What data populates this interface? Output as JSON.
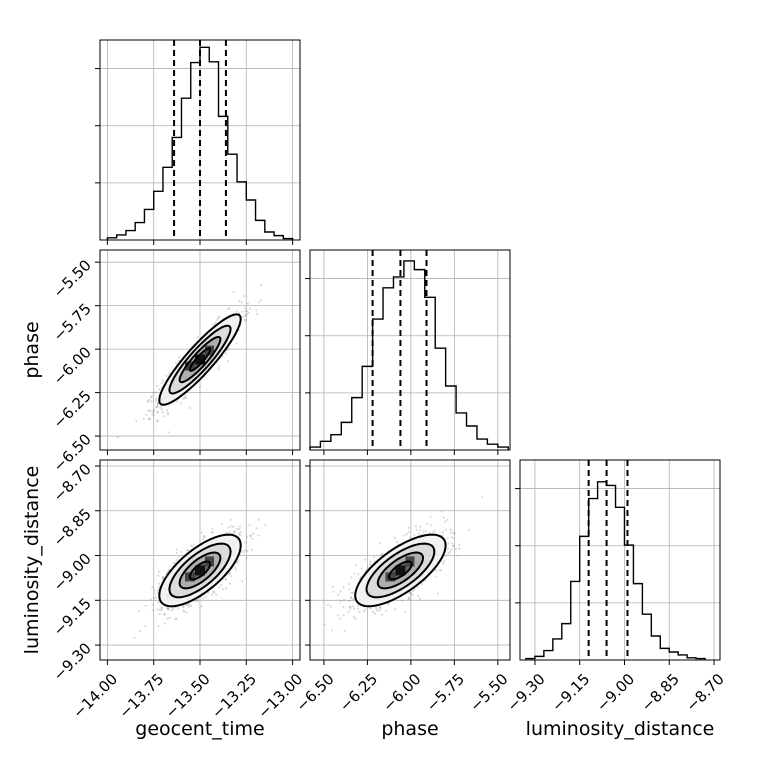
{
  "chart_data": {
    "type": "corner",
    "parameters": [
      "geocent_time",
      "phase",
      "luminosity_distance"
    ],
    "ticks": {
      "geocent_time": {
        "values": [
          -14.0,
          -13.75,
          -13.5,
          -13.25,
          -13.0
        ],
        "labels": [
          "−14.00",
          "−13.75",
          "−13.50",
          "−13.25",
          "−13.00"
        ]
      },
      "phase": {
        "values": [
          -6.5,
          -6.25,
          -6.0,
          -5.75,
          -5.5
        ],
        "labels": [
          "−6.50",
          "−6.25",
          "−6.00",
          "−5.75",
          "−5.50"
        ]
      },
      "luminosity_distance": {
        "values": [
          -9.3,
          -9.15,
          -9.0,
          -8.85,
          -8.7
        ],
        "labels": [
          "−9.30",
          "−9.15",
          "−9.00",
          "−8.85",
          "−8.70"
        ]
      }
    },
    "ranges": {
      "geocent_time": [
        -14.04,
        -12.96
      ],
      "phase": [
        -6.58,
        -5.43
      ],
      "luminosity_distance": [
        -9.35,
        -8.68
      ]
    },
    "diag_max": 0.275,
    "histograms": {
      "geocent_time": {
        "edges": [
          -14.0,
          -13.95,
          -13.9,
          -13.85,
          -13.8,
          -13.75,
          -13.7,
          -13.65,
          -13.6,
          -13.55,
          -13.5,
          -13.45,
          -13.4,
          -13.35,
          -13.3,
          -13.25,
          -13.2,
          -13.15,
          -13.1,
          -13.05,
          -13.0
        ],
        "counts": [
          0.003,
          0.007,
          0.013,
          0.024,
          0.042,
          0.067,
          0.1,
          0.141,
          0.195,
          0.244,
          0.265,
          0.245,
          0.17,
          0.118,
          0.08,
          0.055,
          0.027,
          0.011,
          0.006,
          0.002
        ],
        "quantiles": [
          -13.64,
          -13.5,
          -13.36
        ]
      },
      "phase": {
        "edges": [
          -6.58,
          -6.52,
          -6.46,
          -6.4,
          -6.34,
          -6.28,
          -6.22,
          -6.16,
          -6.1,
          -6.04,
          -5.98,
          -5.92,
          -5.86,
          -5.8,
          -5.74,
          -5.68,
          -5.62,
          -5.56,
          -5.5,
          -5.44
        ],
        "counts": [
          0.004,
          0.012,
          0.021,
          0.038,
          0.072,
          0.115,
          0.18,
          0.223,
          0.238,
          0.26,
          0.248,
          0.21,
          0.14,
          0.088,
          0.051,
          0.033,
          0.015,
          0.008,
          0.004
        ],
        "quantiles": [
          -6.22,
          -6.06,
          -5.91
        ]
      },
      "luminosity_distance": {
        "edges": [
          -9.33,
          -9.3,
          -9.27,
          -9.24,
          -9.21,
          -9.18,
          -9.15,
          -9.12,
          -9.09,
          -9.06,
          -9.03,
          -9.0,
          -8.97,
          -8.94,
          -8.91,
          -8.88,
          -8.85,
          -8.82,
          -8.79,
          -8.76,
          -8.73
        ],
        "counts": [
          0.002,
          0.005,
          0.013,
          0.029,
          0.05,
          0.108,
          0.17,
          0.222,
          0.245,
          0.24,
          0.21,
          0.158,
          0.105,
          0.063,
          0.033,
          0.016,
          0.011,
          0.007,
          0.003,
          0.002
        ],
        "quantiles": [
          -9.12,
          -9.06,
          -8.99
        ]
      }
    },
    "pairs": [
      {
        "x": "geocent_time",
        "y": "phase",
        "center": [
          -13.5,
          -6.06
        ],
        "sigma": [
          0.11,
          0.13
        ],
        "rho": 0.9,
        "contour_levels": [
          0.5,
          1.0,
          1.5,
          2.0
        ]
      },
      {
        "x": "geocent_time",
        "y": "luminosity_distance",
        "center": [
          -13.5,
          -9.05
        ],
        "sigma": [
          0.11,
          0.06
        ],
        "rho": 0.7,
        "contour_levels": [
          0.5,
          1.0,
          1.5,
          2.0
        ]
      },
      {
        "x": "phase",
        "y": "luminosity_distance",
        "center": [
          -6.06,
          -9.05
        ],
        "sigma": [
          0.13,
          0.06
        ],
        "rho": 0.7,
        "contour_levels": [
          0.5,
          1.0,
          1.5,
          2.0
        ]
      }
    ],
    "grid": true,
    "colors": {
      "line": "#000000",
      "grid": "#b0b0b0",
      "points": "#7a7a7a",
      "fill_light": "#f2f2f2",
      "fill_dark": "#222222"
    }
  }
}
